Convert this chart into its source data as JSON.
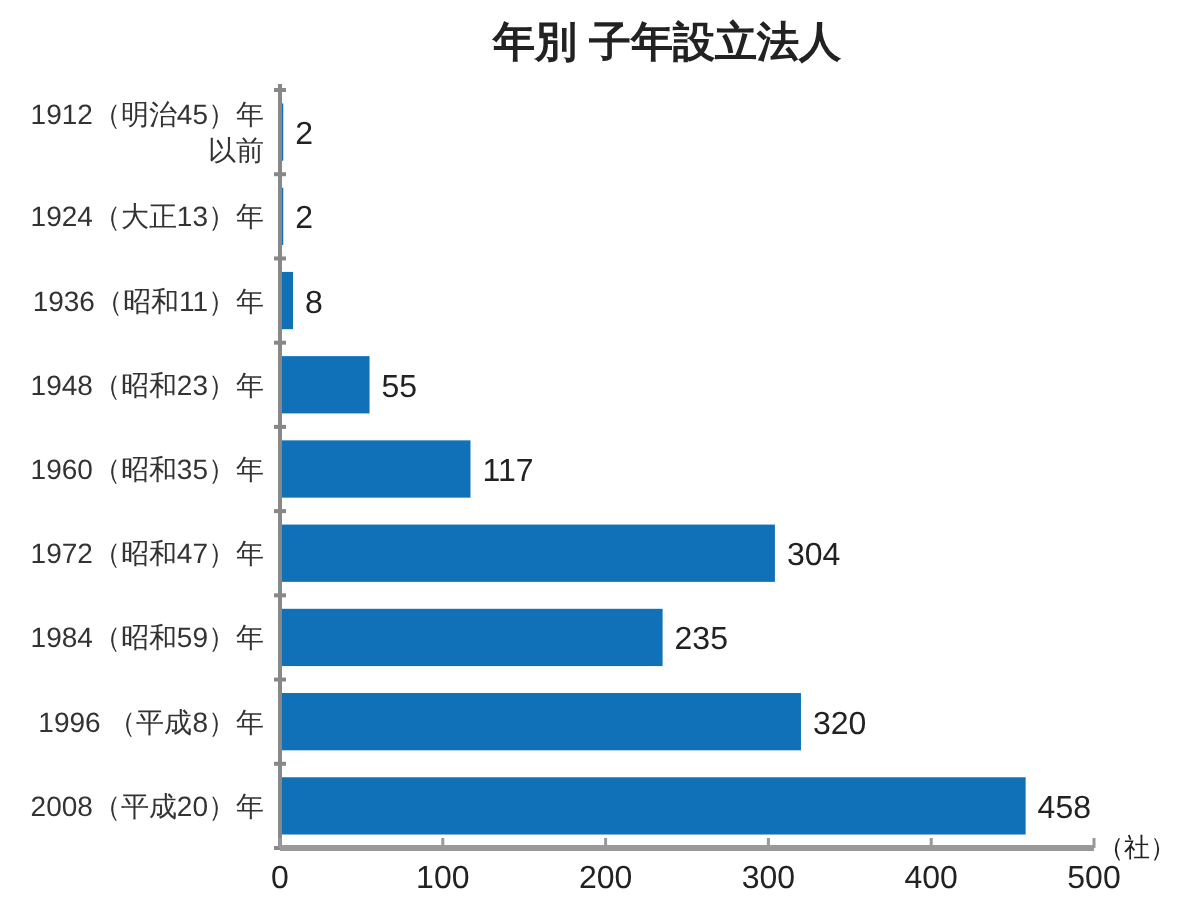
{
  "chart_data": {
    "type": "bar",
    "orientation": "horizontal",
    "title": "年別 子年設立法人",
    "xlabel": "（社）",
    "categories": [
      "1912（明治45）年以前",
      "1924（大正13）年",
      "1936（昭和11）年",
      "1948（昭和23）年",
      "1960（昭和35）年",
      "1972（昭和47）年",
      "1984（昭和59）年",
      "1996 （平成8）年",
      "2008（平成20）年"
    ],
    "values": [
      2,
      2,
      8,
      55,
      117,
      304,
      235,
      320,
      458
    ],
    "color": "#1070b8",
    "xlim": [
      0,
      500
    ],
    "xticks": [
      0,
      100,
      200,
      300,
      400,
      500
    ],
    "data_labels": true,
    "grid": false
  }
}
